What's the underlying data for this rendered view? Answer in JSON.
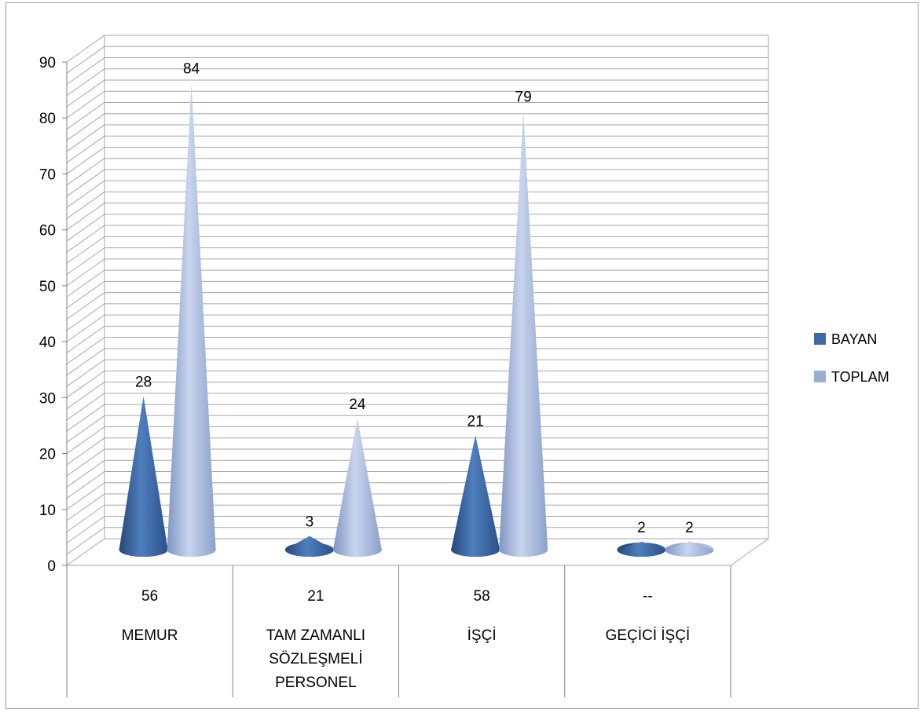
{
  "chart_data": {
    "type": "bar",
    "shape": "3d-cone",
    "categories": [
      "MEMUR",
      "TAM ZAMANLI SÖZLEŞMELİ PERSONEL",
      "İŞÇİ",
      "GEÇİCİ İŞÇİ"
    ],
    "category_labels": [
      [
        "MEMUR"
      ],
      [
        "TAM ZAMANLI",
        "SÖZLEŞMELİ",
        "PERSONEL"
      ],
      [
        "İŞÇİ"
      ],
      [
        "GEÇİCİ İŞÇİ"
      ]
    ],
    "table_row": [
      "56",
      "21",
      "58",
      "--"
    ],
    "series": [
      {
        "name": "BAYAN",
        "values": [
          28,
          3,
          21,
          2
        ],
        "color": "#3d6aa6"
      },
      {
        "name": "TOPLAM",
        "values": [
          84,
          24,
          79,
          2
        ],
        "color": "#9aaed4"
      }
    ],
    "ylim": [
      0,
      90
    ],
    "yticks": [
      0,
      10,
      20,
      30,
      40,
      50,
      60,
      70,
      80,
      90
    ],
    "grid": true,
    "legend": "right",
    "title": "",
    "xlabel": "",
    "ylabel": ""
  }
}
